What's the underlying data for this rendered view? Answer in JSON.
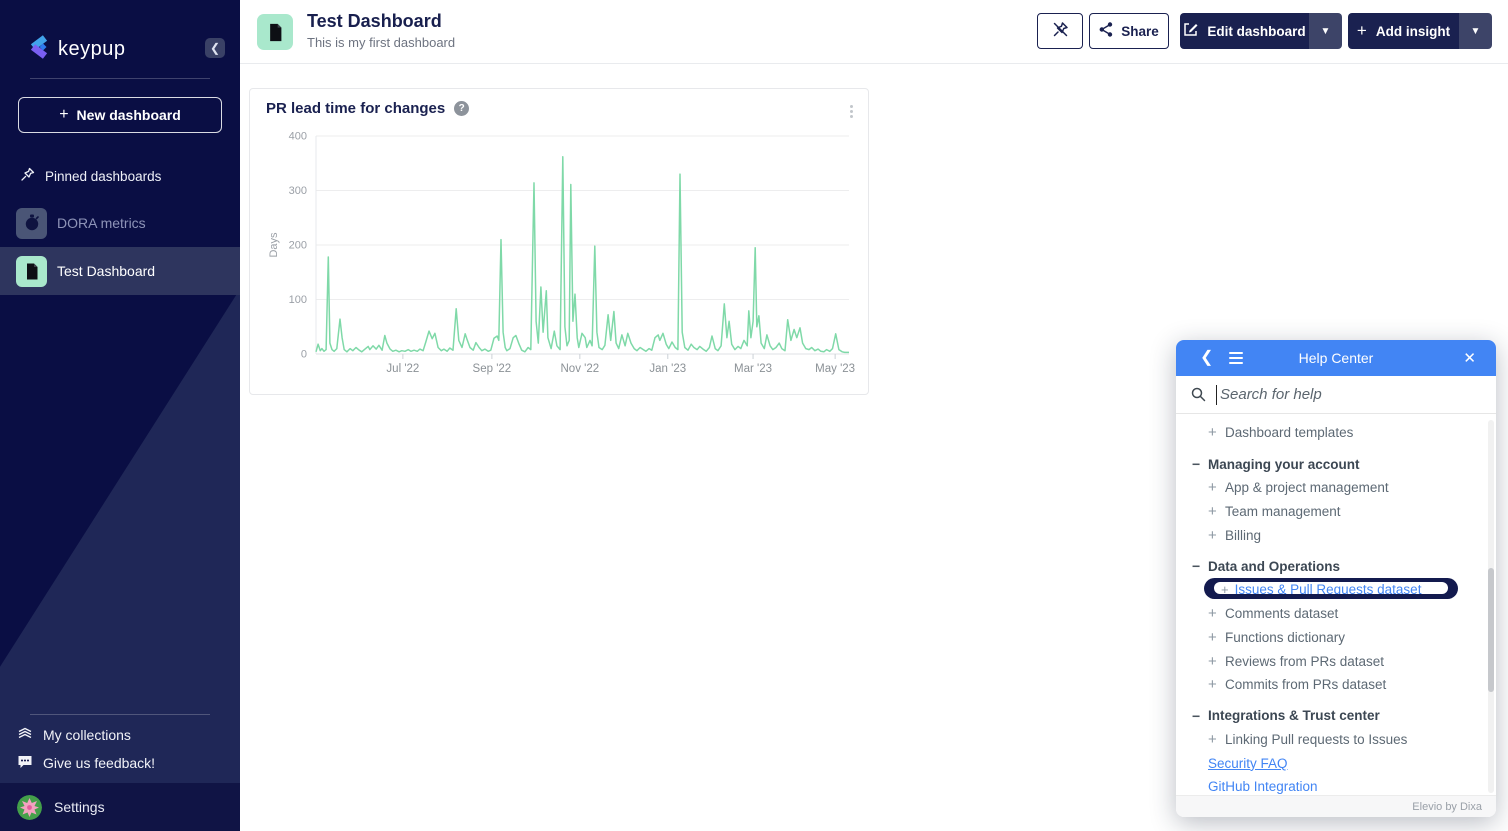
{
  "sidebar": {
    "logo_text": "keypup",
    "new_dashboard_label": "New dashboard",
    "pinned_label": "Pinned dashboards",
    "items": [
      {
        "label": "DORA metrics",
        "active": false
      },
      {
        "label": "Test Dashboard",
        "active": true
      }
    ],
    "footer_items": [
      {
        "label": "My collections"
      },
      {
        "label": "Give us feedback!"
      }
    ],
    "settings_label": "Settings"
  },
  "header": {
    "title": "Test Dashboard",
    "subtitle": "This is my first dashboard",
    "share_label": "Share",
    "edit_dashboard_label": "Edit dashboard",
    "add_insight_label": "Add insight"
  },
  "chart_card": {
    "title": "PR lead time for changes"
  },
  "chart_data": {
    "type": "line",
    "title": "PR lead time for changes",
    "ylabel": "Days",
    "ylim": [
      0,
      400
    ],
    "y_ticks": [
      0,
      100,
      200,
      300,
      400
    ],
    "x_ticks": [
      {
        "label": "Jul '22",
        "f": 0.163
      },
      {
        "label": "Sep '22",
        "f": 0.33
      },
      {
        "label": "Nov '22",
        "f": 0.495
      },
      {
        "label": "Jan '23",
        "f": 0.66
      },
      {
        "label": "Mar '23",
        "f": 0.82
      },
      {
        "label": "May '23",
        "f": 0.974
      }
    ],
    "line_color": "#7fd9a8",
    "grid": true,
    "legend": "none",
    "points": [
      [
        0.0,
        4
      ],
      [
        0.004,
        18
      ],
      [
        0.008,
        6
      ],
      [
        0.011,
        10
      ],
      [
        0.015,
        5
      ],
      [
        0.019,
        8
      ],
      [
        0.023,
        178
      ],
      [
        0.026,
        20
      ],
      [
        0.03,
        8
      ],
      [
        0.034,
        5
      ],
      [
        0.039,
        10
      ],
      [
        0.045,
        64
      ],
      [
        0.049,
        30
      ],
      [
        0.053,
        8
      ],
      [
        0.058,
        4
      ],
      [
        0.064,
        10
      ],
      [
        0.069,
        6
      ],
      [
        0.075,
        12
      ],
      [
        0.081,
        7
      ],
      [
        0.086,
        4
      ],
      [
        0.092,
        9
      ],
      [
        0.098,
        14
      ],
      [
        0.101,
        8
      ],
      [
        0.107,
        15
      ],
      [
        0.113,
        9
      ],
      [
        0.118,
        16
      ],
      [
        0.124,
        7
      ],
      [
        0.129,
        34
      ],
      [
        0.133,
        20
      ],
      [
        0.139,
        9
      ],
      [
        0.144,
        5
      ],
      [
        0.15,
        7
      ],
      [
        0.156,
        4
      ],
      [
        0.161,
        6
      ],
      [
        0.167,
        5
      ],
      [
        0.173,
        8
      ],
      [
        0.178,
        5
      ],
      [
        0.184,
        7
      ],
      [
        0.19,
        5
      ],
      [
        0.195,
        9
      ],
      [
        0.201,
        6
      ],
      [
        0.206,
        22
      ],
      [
        0.212,
        42
      ],
      [
        0.218,
        28
      ],
      [
        0.223,
        38
      ],
      [
        0.229,
        12
      ],
      [
        0.235,
        6
      ],
      [
        0.24,
        9
      ],
      [
        0.246,
        5
      ],
      [
        0.251,
        11
      ],
      [
        0.257,
        7
      ],
      [
        0.263,
        83
      ],
      [
        0.268,
        25
      ],
      [
        0.274,
        12
      ],
      [
        0.28,
        37
      ],
      [
        0.283,
        28
      ],
      [
        0.289,
        12
      ],
      [
        0.295,
        7
      ],
      [
        0.3,
        21
      ],
      [
        0.306,
        12
      ],
      [
        0.311,
        6
      ],
      [
        0.317,
        9
      ],
      [
        0.323,
        5
      ],
      [
        0.328,
        7
      ],
      [
        0.334,
        29
      ],
      [
        0.34,
        33
      ],
      [
        0.343,
        25
      ],
      [
        0.347,
        210
      ],
      [
        0.351,
        40
      ],
      [
        0.355,
        12
      ],
      [
        0.358,
        6
      ],
      [
        0.364,
        10
      ],
      [
        0.37,
        30
      ],
      [
        0.375,
        34
      ],
      [
        0.381,
        18
      ],
      [
        0.386,
        7
      ],
      [
        0.392,
        4
      ],
      [
        0.398,
        12
      ],
      [
        0.403,
        8
      ],
      [
        0.409,
        314
      ],
      [
        0.413,
        60
      ],
      [
        0.417,
        20
      ],
      [
        0.422,
        123
      ],
      [
        0.426,
        40
      ],
      [
        0.432,
        116
      ],
      [
        0.435,
        30
      ],
      [
        0.441,
        10
      ],
      [
        0.447,
        42
      ],
      [
        0.452,
        15
      ],
      [
        0.458,
        8
      ],
      [
        0.463,
        362
      ],
      [
        0.467,
        50
      ],
      [
        0.471,
        15
      ],
      [
        0.475,
        25
      ],
      [
        0.478,
        311
      ],
      [
        0.482,
        60
      ],
      [
        0.486,
        110
      ],
      [
        0.49,
        30
      ],
      [
        0.493,
        12
      ],
      [
        0.499,
        38
      ],
      [
        0.505,
        30
      ],
      [
        0.508,
        12
      ],
      [
        0.514,
        25
      ],
      [
        0.518,
        15
      ],
      [
        0.523,
        198
      ],
      [
        0.527,
        40
      ],
      [
        0.531,
        12
      ],
      [
        0.537,
        8
      ],
      [
        0.542,
        16
      ],
      [
        0.548,
        72
      ],
      [
        0.553,
        25
      ],
      [
        0.559,
        78
      ],
      [
        0.563,
        20
      ],
      [
        0.568,
        10
      ],
      [
        0.574,
        35
      ],
      [
        0.58,
        15
      ],
      [
        0.585,
        38
      ],
      [
        0.591,
        20
      ],
      [
        0.597,
        10
      ],
      [
        0.602,
        6
      ],
      [
        0.608,
        12
      ],
      [
        0.614,
        8
      ],
      [
        0.619,
        5
      ],
      [
        0.625,
        10
      ],
      [
        0.63,
        7
      ],
      [
        0.636,
        30
      ],
      [
        0.642,
        35
      ],
      [
        0.645,
        25
      ],
      [
        0.651,
        38
      ],
      [
        0.657,
        18
      ],
      [
        0.662,
        10
      ],
      [
        0.668,
        22
      ],
      [
        0.674,
        12
      ],
      [
        0.679,
        8
      ],
      [
        0.683,
        330
      ],
      [
        0.687,
        40
      ],
      [
        0.692,
        12
      ],
      [
        0.698,
        7
      ],
      [
        0.704,
        18
      ],
      [
        0.709,
        12
      ],
      [
        0.715,
        8
      ],
      [
        0.72,
        14
      ],
      [
        0.726,
        9
      ],
      [
        0.732,
        5
      ],
      [
        0.738,
        12
      ],
      [
        0.743,
        33
      ],
      [
        0.749,
        10
      ],
      [
        0.754,
        6
      ],
      [
        0.76,
        15
      ],
      [
        0.766,
        92
      ],
      [
        0.771,
        30
      ],
      [
        0.775,
        60
      ],
      [
        0.78,
        18
      ],
      [
        0.786,
        8
      ],
      [
        0.792,
        14
      ],
      [
        0.797,
        10
      ],
      [
        0.803,
        25
      ],
      [
        0.809,
        15
      ],
      [
        0.812,
        79
      ],
      [
        0.816,
        30
      ],
      [
        0.82,
        60
      ],
      [
        0.824,
        195
      ],
      [
        0.827,
        50
      ],
      [
        0.831,
        70
      ],
      [
        0.835,
        20
      ],
      [
        0.841,
        10
      ],
      [
        0.846,
        35
      ],
      [
        0.852,
        15
      ],
      [
        0.857,
        8
      ],
      [
        0.863,
        12
      ],
      [
        0.869,
        20
      ],
      [
        0.874,
        10
      ],
      [
        0.88,
        6
      ],
      [
        0.885,
        63
      ],
      [
        0.891,
        25
      ],
      [
        0.897,
        45
      ],
      [
        0.902,
        30
      ],
      [
        0.908,
        48
      ],
      [
        0.913,
        20
      ],
      [
        0.919,
        10
      ],
      [
        0.925,
        8
      ],
      [
        0.93,
        12
      ],
      [
        0.936,
        6
      ],
      [
        0.942,
        9
      ],
      [
        0.947,
        5
      ],
      [
        0.953,
        4
      ],
      [
        0.958,
        8
      ],
      [
        0.964,
        5
      ],
      [
        0.969,
        10
      ],
      [
        0.975,
        37
      ],
      [
        0.981,
        8
      ],
      [
        0.987,
        4
      ],
      [
        0.992,
        3
      ],
      [
        1.0,
        3
      ]
    ]
  },
  "help_center": {
    "title": "Help Center",
    "search_placeholder": "Search for help",
    "items": [
      {
        "type": "item",
        "label": "Dashboard templates"
      },
      {
        "type": "section",
        "label": "Managing your account"
      },
      {
        "type": "item",
        "label": "App & project management"
      },
      {
        "type": "item",
        "label": "Team management"
      },
      {
        "type": "item",
        "label": "Billing"
      },
      {
        "type": "section",
        "label": "Data and Operations"
      },
      {
        "type": "item-highlighted",
        "label": "Issues & Pull Requests dataset"
      },
      {
        "type": "item",
        "label": "Comments dataset"
      },
      {
        "type": "item",
        "label": "Functions dictionary"
      },
      {
        "type": "item",
        "label": "Reviews from PRs dataset"
      },
      {
        "type": "item",
        "label": "Commits from PRs dataset"
      },
      {
        "type": "section",
        "label": "Integrations & Trust center"
      },
      {
        "type": "item",
        "label": "Linking Pull requests to Issues"
      },
      {
        "type": "link",
        "label": "Security FAQ",
        "underline": true
      },
      {
        "type": "link",
        "label": "GitHub Integration",
        "underline": false
      }
    ],
    "footer": "Elevio by Dixa"
  },
  "colors": {
    "sidebar_dark": "#0a0e44",
    "sidebar_light": "#1f2757",
    "navy": "#1a2150",
    "mint": "#a9e8cc",
    "help_blue": "#4285f4",
    "chart_green": "#7fd9a8",
    "highlight_capsule": "#131a4e"
  }
}
